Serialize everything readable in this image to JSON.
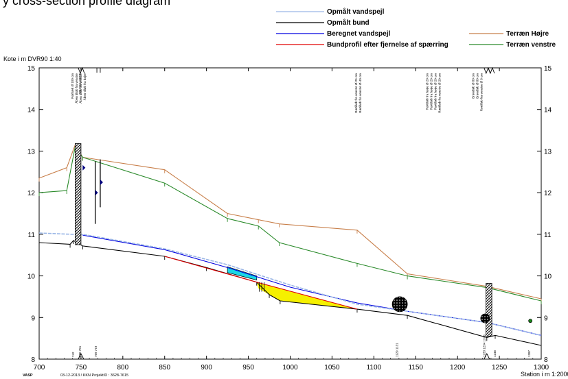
{
  "page": {
    "title": "y cross-section profile diagram"
  },
  "chart_data": {
    "type": "line",
    "title": "",
    "xlabel": "Station i m  1:2000",
    "ylabel": "Kote i m DVR90 1:40",
    "xlim": [
      700,
      1300
    ],
    "ylim": [
      8,
      15
    ],
    "x_ticks": [
      700,
      750,
      800,
      850,
      900,
      950,
      1000,
      1050,
      1100,
      1150,
      1200,
      1250,
      1300
    ],
    "y_ticks": [
      8,
      9,
      10,
      11,
      12,
      13,
      14,
      15
    ],
    "legend": {
      "position": "top-right"
    },
    "series": [
      {
        "name": "Opmålt vandspejl",
        "color": "#9ab6e6",
        "points": [
          [
            700,
            11.03
          ],
          [
            740,
            11.0
          ],
          [
            752,
            11.0
          ],
          [
            850,
            10.65
          ],
          [
            925,
            10.27
          ],
          [
            1000,
            9.78
          ],
          [
            1080,
            9.32
          ],
          [
            1140,
            9.15
          ],
          [
            1235,
            8.88
          ],
          [
            1300,
            8.57
          ]
        ]
      },
      {
        "name": "Opmålt bund",
        "color": "#000000",
        "points": [
          [
            700,
            10.8
          ],
          [
            737,
            10.76
          ],
          [
            741,
            10.85
          ],
          [
            752,
            10.72
          ],
          [
            850,
            10.47
          ],
          [
            900,
            10.2
          ],
          [
            960,
            9.85
          ],
          [
            975,
            9.55
          ],
          [
            988,
            9.4
          ],
          [
            1080,
            9.2
          ],
          [
            1140,
            9.05
          ],
          [
            1235,
            8.52
          ],
          [
            1245,
            8.57
          ],
          [
            1300,
            8.33
          ]
        ]
      },
      {
        "name": "Beregnet vandspejl",
        "color": "#0000e0",
        "points": [
          [
            752,
            10.98
          ],
          [
            850,
            10.63
          ],
          [
            925,
            10.2
          ],
          [
            1000,
            9.73
          ],
          [
            1080,
            9.35
          ],
          [
            1140,
            9.15
          ],
          [
            1235,
            8.88
          ],
          [
            1300,
            8.57
          ]
        ]
      },
      {
        "name": "Bundprofil efter fjernelse af spærring",
        "color": "#e00000",
        "points": [
          [
            850,
            10.47
          ],
          [
            960,
            9.85
          ],
          [
            1080,
            9.2
          ]
        ]
      },
      {
        "name": "Terræn Højre",
        "color": "#c87f4a",
        "points": [
          [
            700,
            12.35
          ],
          [
            733,
            12.6
          ],
          [
            743,
            13.15
          ],
          [
            752,
            12.85
          ],
          [
            850,
            12.55
          ],
          [
            925,
            11.5
          ],
          [
            962,
            11.35
          ],
          [
            987,
            11.25
          ],
          [
            1080,
            11.1
          ],
          [
            1140,
            10.05
          ],
          [
            1235,
            9.75
          ],
          [
            1300,
            9.45
          ]
        ]
      },
      {
        "name": "Terræn venstre",
        "color": "#2a8a2a",
        "points": [
          [
            700,
            12.0
          ],
          [
            733,
            12.05
          ],
          [
            743,
            13.1
          ],
          [
            752,
            12.85
          ],
          [
            850,
            12.23
          ],
          [
            925,
            11.38
          ],
          [
            962,
            11.2
          ],
          [
            987,
            10.8
          ],
          [
            1080,
            10.3
          ],
          [
            1140,
            10.0
          ],
          [
            1235,
            9.72
          ],
          [
            1300,
            9.4
          ]
        ]
      }
    ],
    "structure_labels": [
      {
        "x": 741,
        "lines": [
          "Rørbæk Ø 100 cm",
          "Åben tilløb fra venstre",
          "Åben tilløb fra venstre",
          "Åben tilløb fra højre"
        ]
      },
      {
        "x": 750,
        "lines": [
          "VEJ OG OEFT"
        ]
      },
      {
        "x": 1080,
        "lines": [
          "Rørtilløb fra venstre Ø 25 cm",
          "Rørtilløb fra venstre Ø 40 cm"
        ]
      },
      {
        "x": 1165,
        "lines": [
          "Rørtilløb fra højre Ø 20 cm",
          "Rørtilløb fra højre Ø 20 cm",
          "Rørtilløb fra højre Ø 20 cm",
          "Rørtilløb fra venstre Ø 20 cm"
        ]
      },
      {
        "x": 1220,
        "lines": [
          "Brøndløb Ø 80 cm",
          "Brøndløb Ø 80 cm",
          "Rørtilløb fra venstre Ø 8 cm"
        ]
      }
    ],
    "station_marks": [
      {
        "x": 742,
        "text": "742"
      },
      {
        "x": 750,
        "text": "750 751"
      },
      {
        "x": 769,
        "text": "769 773"
      },
      {
        "x": 1129,
        "text": "1129 1131"
      },
      {
        "x": 1233,
        "text": "1233 1234 1240"
      },
      {
        "x": 1246,
        "text": "1246"
      },
      {
        "x": 1287,
        "text": "1287"
      }
    ]
  },
  "footer": {
    "brand": "VASP",
    "info": "03-12-2013 / KKN   ProjektID : 3628-7615"
  }
}
